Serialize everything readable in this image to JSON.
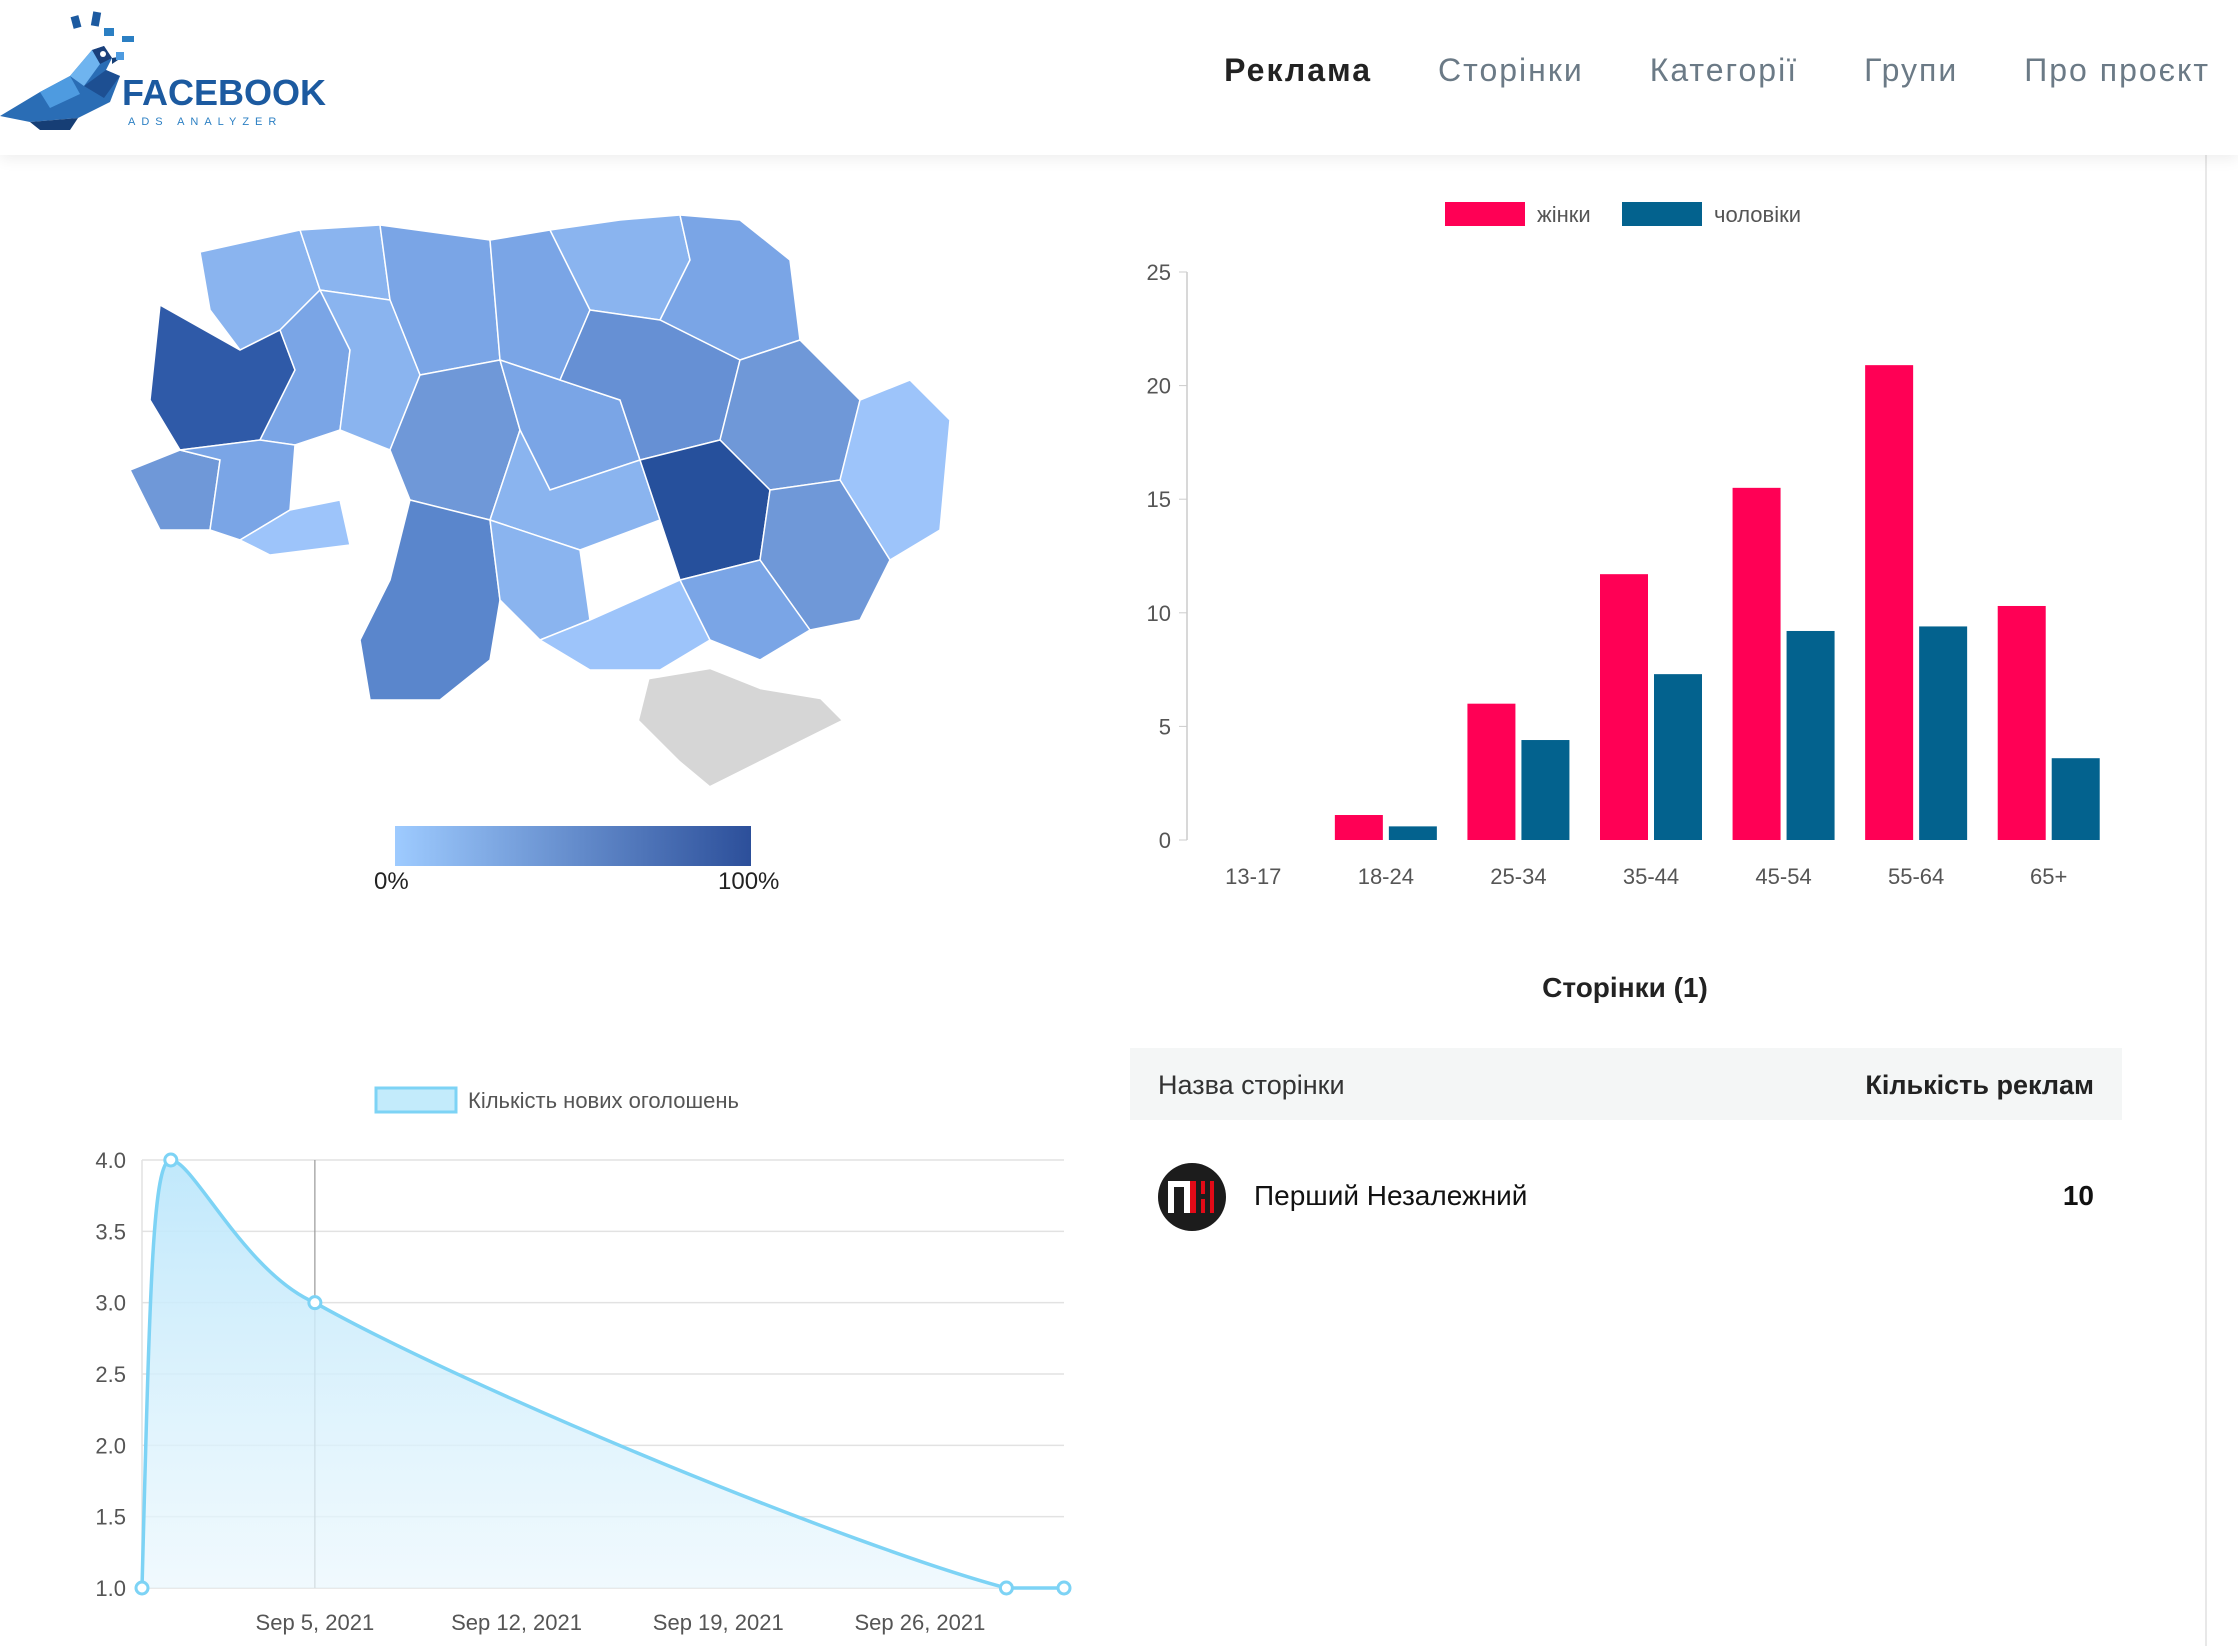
{
  "header": {
    "logo": {
      "word": "FACEBOOK",
      "sub": "ADS ANALYZER"
    },
    "nav": [
      {
        "label": "Реклама",
        "active": true
      },
      {
        "label": "Сторінки",
        "active": false
      },
      {
        "label": "Категорії",
        "active": false
      },
      {
        "label": "Групи",
        "active": false
      },
      {
        "label": "Про проєкт",
        "active": false
      }
    ]
  },
  "map": {
    "legend_min": "0%",
    "legend_max": "100%",
    "colors": {
      "low": "#9ecbff",
      "high": "#2c4f9a",
      "crimea": "#d6d6d6"
    }
  },
  "chart_data": [
    {
      "type": "bar",
      "categories": [
        "13-17",
        "18-24",
        "25-34",
        "35-44",
        "45-54",
        "55-64",
        "65+"
      ],
      "series": [
        {
          "name": "жінки",
          "color": "#ff0055",
          "values": [
            0,
            1.1,
            6.0,
            11.7,
            15.5,
            20.9,
            10.3
          ]
        },
        {
          "name": "чоловіки",
          "color": "#03628e",
          "values": [
            0,
            0.6,
            4.4,
            7.3,
            9.2,
            9.4,
            3.6
          ]
        }
      ],
      "ylim": [
        0,
        25
      ],
      "yticks": [
        0,
        5,
        10,
        15,
        20,
        25
      ],
      "legend": "top"
    },
    {
      "type": "area",
      "series": [
        {
          "name": "Кількість нових оголошень",
          "color": "#7dd3f5",
          "x": [
            "2021-08-30",
            "2021-08-31",
            "2021-09-05",
            "2021-09-29",
            "2021-10-01"
          ],
          "values": [
            1,
            4,
            3,
            1,
            1
          ]
        }
      ],
      "xticks": [
        "Sep 5, 2021",
        "Sep 12, 2021",
        "Sep 19, 2021",
        "Sep 26, 2021"
      ],
      "yticks": [
        "1.0",
        "1.5",
        "2.0",
        "2.5",
        "3.0",
        "3.5",
        "4.0"
      ],
      "ylim": [
        1,
        4
      ],
      "legend": "top",
      "grid": true
    }
  ],
  "pages": {
    "title": "Сторінки (1)",
    "col_name": "Назва сторінки",
    "col_count": "Кількість реклам",
    "rows": [
      {
        "avatar": "ПН",
        "name": "Перший Незалежний",
        "count": "10"
      }
    ]
  }
}
